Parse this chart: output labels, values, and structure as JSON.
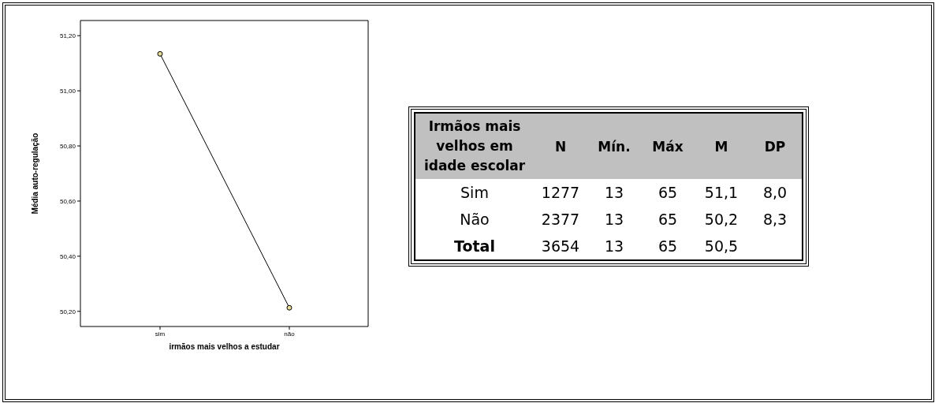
{
  "chart_data": [
    {
      "type": "line",
      "xlabel": "irmãos mais velhos a estudar",
      "ylabel": "Média auto-regulação",
      "categories": [
        "sim",
        "não"
      ],
      "series": [
        {
          "color": "#000000",
          "values": [
            51.134,
            50.213
          ]
        }
      ],
      "ylim": [
        50.145,
        51.255
      ],
      "yticks": [
        {
          "value": 50.2,
          "label": "50,20"
        },
        {
          "value": 50.4,
          "label": "50,40"
        },
        {
          "value": 50.6,
          "label": "50,60"
        },
        {
          "value": 50.8,
          "label": "50,80"
        },
        {
          "value": 51.0,
          "label": "51,00"
        },
        {
          "value": 51.2,
          "label": "51,20"
        }
      ],
      "marker": "circle",
      "line_style": "solid"
    },
    {
      "type": "other",
      "ylabel": "Irmãos mais velhos em idade escolar",
      "categories": [
        "N",
        "Mín.",
        "Máx",
        "M",
        "DP"
      ],
      "series": [
        {
          "name": "Sim",
          "values": [
            1277,
            13,
            65,
            51.1,
            8.0
          ],
          "value_labels": [
            "1277",
            "13",
            "65",
            "51,1",
            "8,0"
          ]
        },
        {
          "name": "Não",
          "values": [
            2377,
            13,
            65,
            50.2,
            8.3
          ],
          "value_labels": [
            "2377",
            "13",
            "65",
            "50,2",
            "8,3"
          ]
        },
        {
          "name": "Total",
          "values": [
            3654,
            13,
            65,
            50.5,
            null
          ],
          "value_labels": [
            "3654",
            "13",
            "65",
            "50,5",
            null
          ]
        }
      ]
    }
  ]
}
